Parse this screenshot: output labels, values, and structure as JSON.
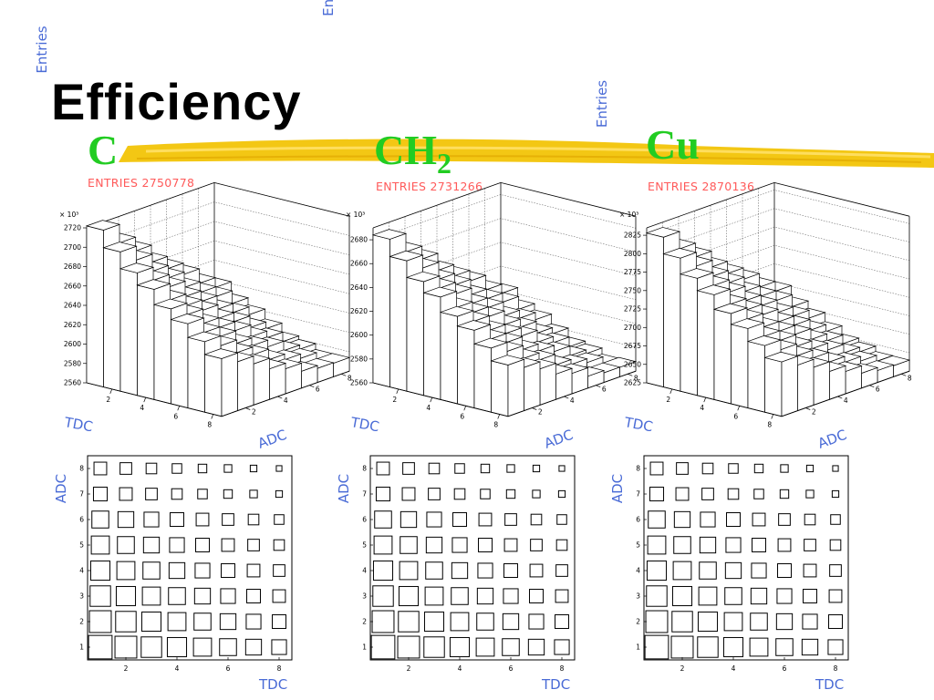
{
  "page": {
    "title": "Efficiency",
    "colors": {
      "title": "#000000",
      "material": "#22cc22",
      "entries": "#ff5a5a",
      "axis_label": "#4a6bd6",
      "swoosh": "#f2c200"
    }
  },
  "panels": [
    {
      "label": "C",
      "label_sub": "",
      "entries": "ENTRIES 2750778"
    },
    {
      "label": "CH",
      "label_sub": "2",
      "entries": "ENTRIES 2731266"
    },
    {
      "label": "Cu",
      "label_sub": "",
      "entries": "ENTRIES 2870136"
    }
  ],
  "chart_data": [
    {
      "type": "bar3d",
      "material": "C",
      "exponent_label": "× 10³",
      "xlabel": "TDC",
      "ylabel": "ADC",
      "zlabel": "Entries",
      "z_ticks": [
        2560,
        2580,
        2600,
        2620,
        2640,
        2660,
        2680,
        2700,
        2720
      ],
      "zlim": [
        2560,
        2720
      ],
      "x_ticks": [
        2,
        4,
        6,
        8
      ],
      "y_ticks": [
        2,
        4,
        6,
        8
      ],
      "bins_tdc": 8,
      "bins_adc": 8,
      "max_value": 2722,
      "min_value": 2574
    },
    {
      "type": "bar3d",
      "material": "CH2",
      "exponent_label": "× 10³",
      "xlabel": "TDC",
      "ylabel": "ADC",
      "zlabel": "Entries",
      "z_ticks": [
        2560,
        2580,
        2600,
        2620,
        2640,
        2660,
        2680
      ],
      "zlim": [
        2560,
        2690
      ],
      "x_ticks": [
        2,
        4,
        6,
        8
      ],
      "y_ticks": [
        2,
        4,
        6,
        8
      ],
      "bins_tdc": 8,
      "bins_adc": 8,
      "max_value": 2684,
      "min_value": 2568
    },
    {
      "type": "bar3d",
      "material": "Cu",
      "exponent_label": "× 10³",
      "xlabel": "TDC",
      "ylabel": "ADC",
      "zlabel": "Entries",
      "z_ticks": [
        2625,
        2650,
        2675,
        2700,
        2725,
        2750,
        2775,
        2800,
        2825
      ],
      "zlim": [
        2625,
        2835
      ],
      "x_ticks": [
        2,
        4,
        6,
        8
      ],
      "y_ticks": [
        2,
        4,
        6,
        8
      ],
      "bins_tdc": 8,
      "bins_adc": 8,
      "max_value": 2828,
      "min_value": 2640
    },
    {
      "type": "box2d",
      "material": "C",
      "xlabel": "TDC",
      "ylabel": "ADC",
      "x_ticks": [
        2,
        4,
        6,
        8
      ],
      "y_ticks": [
        1,
        2,
        3,
        4,
        5,
        6,
        7,
        8
      ],
      "bins_tdc": 8,
      "bins_adc": 8
    },
    {
      "type": "box2d",
      "material": "CH2",
      "xlabel": "TDC",
      "ylabel": "ADC",
      "x_ticks": [
        2,
        4,
        6,
        8
      ],
      "y_ticks": [
        1,
        2,
        3,
        4,
        5,
        6,
        7,
        8
      ],
      "bins_tdc": 8,
      "bins_adc": 8
    },
    {
      "type": "box2d",
      "material": "Cu",
      "xlabel": "TDC",
      "ylabel": "ADC",
      "x_ticks": [
        2,
        4,
        6,
        8
      ],
      "y_ticks": [
        1,
        2,
        3,
        4,
        5,
        6,
        7,
        8
      ],
      "bins_tdc": 8,
      "bins_adc": 8
    }
  ]
}
